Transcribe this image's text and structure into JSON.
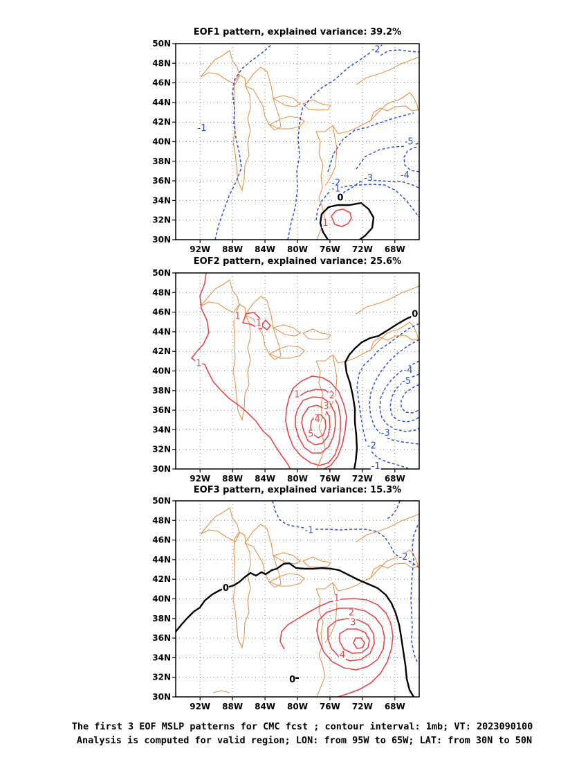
{
  "lon_ticks": [
    "92W",
    "88W",
    "84W",
    "80W",
    "76W",
    "72W",
    "68W"
  ],
  "lat_ticks": [
    "30N",
    "32N",
    "34N",
    "36N",
    "38N",
    "40N",
    "42N",
    "44N",
    "46N",
    "48N",
    "50N"
  ],
  "panels": [
    {
      "title": "EOF1 pattern, explained variance: 39.2%",
      "labels": [
        {
          "text": "-1",
          "lon": -91.8,
          "lat": 41.1,
          "kind": "n"
        },
        {
          "text": "-2",
          "lon": -70.4,
          "lat": 49.1,
          "kind": "n"
        },
        {
          "text": "-3",
          "lon": -71.3,
          "lat": 36.0,
          "kind": "n"
        },
        {
          "text": "-4",
          "lon": -66.8,
          "lat": 36.3,
          "kind": "n"
        },
        {
          "text": "-5",
          "lon": -66.3,
          "lat": 39.7,
          "kind": "n"
        },
        {
          "text": "-2",
          "lon": -75.3,
          "lat": 35.5,
          "kind": "n"
        },
        {
          "text": "-1",
          "lon": -75.3,
          "lat": 34.9,
          "kind": "n"
        },
        {
          "text": "0",
          "lon": -74.6,
          "lat": 34.0,
          "kind": "z"
        },
        {
          "text": "1",
          "lon": -76.4,
          "lat": 31.4,
          "kind": "p"
        }
      ]
    },
    {
      "title": "EOF2 pattern, explained variance: 25.6%",
      "labels": [
        {
          "text": "1",
          "lon": -87.2,
          "lat": 45.3,
          "kind": "p"
        },
        {
          "text": "1",
          "lon": -84.6,
          "lat": 44.6,
          "kind": "p"
        },
        {
          "text": "1",
          "lon": -92.0,
          "lat": 40.5,
          "kind": "p"
        },
        {
          "text": "1",
          "lon": -79.9,
          "lat": 37.3,
          "kind": "p"
        },
        {
          "text": "2",
          "lon": -75.6,
          "lat": 37.2,
          "kind": "p"
        },
        {
          "text": "3",
          "lon": -76.3,
          "lat": 36.1,
          "kind": "p"
        },
        {
          "text": "4",
          "lon": -77.4,
          "lat": 34.8,
          "kind": "p"
        },
        {
          "text": "5",
          "lon": -78.2,
          "lat": 33.3,
          "kind": "p"
        },
        {
          "text": "0",
          "lon": -65.4,
          "lat": 45.5,
          "kind": "z"
        },
        {
          "text": "-5",
          "lon": -66.6,
          "lat": 38.7,
          "kind": "n"
        },
        {
          "text": "-4",
          "lon": -66.4,
          "lat": 39.8,
          "kind": "n"
        },
        {
          "text": "-3",
          "lon": -69.2,
          "lat": 33.4,
          "kind": "n"
        },
        {
          "text": "-2",
          "lon": -70.9,
          "lat": 32.1,
          "kind": "n"
        },
        {
          "text": "-1",
          "lon": -70.4,
          "lat": 30.0,
          "kind": "n"
        }
      ]
    },
    {
      "title": "EOF3 pattern, explained variance: 15.3%",
      "labels": [
        {
          "text": "-1",
          "lon": -78.6,
          "lat": 46.7,
          "kind": "n"
        },
        {
          "text": "-2",
          "lon": -67.0,
          "lat": 44.0,
          "kind": "n"
        },
        {
          "text": "0",
          "lon": -88.7,
          "lat": 40.8,
          "kind": "z"
        },
        {
          "text": "0",
          "lon": -80.5,
          "lat": 31.5,
          "kind": "z"
        },
        {
          "text": "1",
          "lon": -75.0,
          "lat": 39.8,
          "kind": "p"
        },
        {
          "text": "2",
          "lon": -73.2,
          "lat": 38.3,
          "kind": "p"
        },
        {
          "text": "3",
          "lon": -73.0,
          "lat": 37.3,
          "kind": "p"
        },
        {
          "text": "4",
          "lon": -74.3,
          "lat": 34.0,
          "kind": "p"
        }
      ]
    }
  ],
  "caption": [
    "The first 3 EOF MSLP patterns for CMC fcst ; contour interval: 1mb; VT: 2023090100",
    "Analysis is computed for valid region; LON: from 95W to 65W; LAT: from 30N to 50N"
  ],
  "colors": {
    "positive": "#e8474a",
    "negative": "#2d4ce0",
    "zero": "#000000",
    "coast": "#e8914a"
  }
}
